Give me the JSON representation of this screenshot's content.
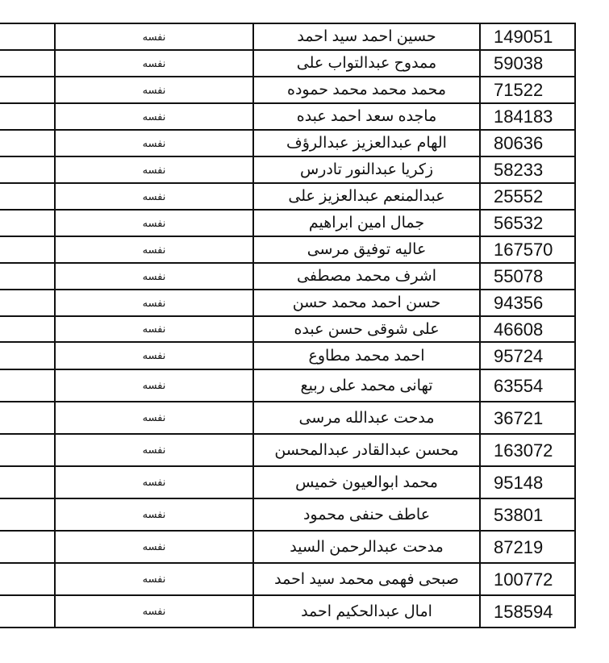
{
  "rows": [
    {
      "relation": "نفسه",
      "name": "حسين احمد سيد احمد",
      "number": "149051"
    },
    {
      "relation": "نفسه",
      "name": "ممدوح عبدالتواب على",
      "number": "59038"
    },
    {
      "relation": "نفسه",
      "name": "محمد محمد محمد حموده",
      "number": "71522"
    },
    {
      "relation": "نفسه",
      "name": "ماجده سعد احمد عبده",
      "number": "184183"
    },
    {
      "relation": "نفسه",
      "name": "الهام عبدالعزيز عبدالرؤف",
      "number": "80636"
    },
    {
      "relation": "نفسه",
      "name": "زكريا عبدالنور تادرس",
      "number": "58233"
    },
    {
      "relation": "نفسه",
      "name": "عبدالمنعم عبدالعزيز على",
      "number": "25552"
    },
    {
      "relation": "نفسه",
      "name": "جمال امين ابراهيم",
      "number": "56532"
    },
    {
      "relation": "نفسه",
      "name": "عاليه توفيق مرسى",
      "number": "167570"
    },
    {
      "relation": "نفسه",
      "name": "اشرف محمد مصطفى",
      "number": "55078"
    },
    {
      "relation": "نفسه",
      "name": "حسن احمد محمد حسن",
      "number": "94356"
    },
    {
      "relation": "نفسه",
      "name": "على شوقى حسن عبده",
      "number": "46608"
    },
    {
      "relation": "نفسه",
      "name": "احمد محمد مطاوع",
      "number": "95724"
    },
    {
      "relation": "نفسه",
      "name": "تهانى محمد على ربيع",
      "number": "63554"
    },
    {
      "relation": "نفسه",
      "name": "مدحت عبدالله مرسى",
      "number": "36721"
    },
    {
      "relation": "نفسه",
      "name": "محسن عبدالقادر عبدالمحسن",
      "number": "163072"
    },
    {
      "relation": "نفسه",
      "name": "محمد ابوالعيون خميس",
      "number": "95148"
    },
    {
      "relation": "نفسه",
      "name": "عاطف حنفى محمود",
      "number": "53801"
    },
    {
      "relation": "نفسه",
      "name": "مدحت عبدالرحمن السيد",
      "number": "87219"
    },
    {
      "relation": "نفسه",
      "name": "صبحى فهمى محمد سيد احمد",
      "number": "100772"
    },
    {
      "relation": "نفسه",
      "name": "امال عبدالحكيم احمد",
      "number": "158594"
    }
  ]
}
